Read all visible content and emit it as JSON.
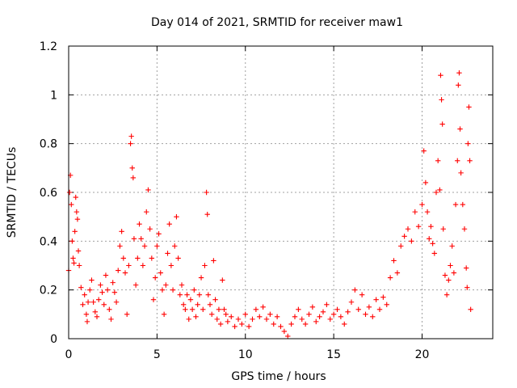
{
  "chart_data": {
    "type": "scatter",
    "title": "Day 014 of 2021, SRMTID for receiver maw1",
    "xlabel": "GPS time / hours",
    "ylabel": "SRMTID / TECUs",
    "xlim": [
      0,
      24.0
    ],
    "ylim": [
      0,
      1.2
    ],
    "xticks": [
      0,
      5,
      10,
      15,
      20
    ],
    "xtick_labels": [
      "0",
      "5",
      "10",
      "15",
      "20"
    ],
    "yticks": [
      0,
      0.2,
      0.4,
      0.6,
      0.8,
      1.0,
      1.2
    ],
    "ytick_labels": [
      "0",
      "0.2",
      "0.4",
      "0.6",
      "0.8",
      "1",
      "1.2"
    ],
    "grid": true,
    "legend": false,
    "marker": "+",
    "color": "#ff0000",
    "series": [
      {
        "name": "SRMTID",
        "points": [
          [
            0.0,
            0.28
          ],
          [
            0.05,
            0.6
          ],
          [
            0.1,
            0.67
          ],
          [
            0.15,
            0.55
          ],
          [
            0.2,
            0.4
          ],
          [
            0.25,
            0.33
          ],
          [
            0.3,
            0.31
          ],
          [
            0.35,
            0.44
          ],
          [
            0.4,
            0.58
          ],
          [
            0.45,
            0.52
          ],
          [
            0.5,
            0.49
          ],
          [
            0.55,
            0.36
          ],
          [
            0.6,
            0.3
          ],
          [
            0.7,
            0.21
          ],
          [
            0.8,
            0.14
          ],
          [
            0.9,
            0.18
          ],
          [
            1.0,
            0.1
          ],
          [
            1.05,
            0.07
          ],
          [
            1.1,
            0.15
          ],
          [
            1.2,
            0.2
          ],
          [
            1.3,
            0.24
          ],
          [
            1.4,
            0.15
          ],
          [
            1.5,
            0.11
          ],
          [
            1.6,
            0.09
          ],
          [
            1.7,
            0.16
          ],
          [
            1.8,
            0.22
          ],
          [
            1.9,
            0.19
          ],
          [
            2.0,
            0.14
          ],
          [
            2.1,
            0.26
          ],
          [
            2.2,
            0.2
          ],
          [
            2.3,
            0.12
          ],
          [
            2.4,
            0.08
          ],
          [
            2.5,
            0.23
          ],
          [
            2.6,
            0.19
          ],
          [
            2.7,
            0.15
          ],
          [
            2.8,
            0.28
          ],
          [
            2.9,
            0.38
          ],
          [
            3.0,
            0.44
          ],
          [
            3.1,
            0.33
          ],
          [
            3.2,
            0.27
          ],
          [
            3.3,
            0.1
          ],
          [
            3.4,
            0.3
          ],
          [
            3.5,
            0.8
          ],
          [
            3.55,
            0.83
          ],
          [
            3.6,
            0.7
          ],
          [
            3.65,
            0.66
          ],
          [
            3.7,
            0.41
          ],
          [
            3.8,
            0.22
          ],
          [
            3.9,
            0.33
          ],
          [
            4.0,
            0.47
          ],
          [
            4.1,
            0.41
          ],
          [
            4.2,
            0.3
          ],
          [
            4.3,
            0.38
          ],
          [
            4.4,
            0.52
          ],
          [
            4.5,
            0.61
          ],
          [
            4.6,
            0.45
          ],
          [
            4.7,
            0.33
          ],
          [
            4.8,
            0.16
          ],
          [
            4.9,
            0.25
          ],
          [
            5.0,
            0.38
          ],
          [
            5.1,
            0.43
          ],
          [
            5.2,
            0.27
          ],
          [
            5.3,
            0.2
          ],
          [
            5.4,
            0.1
          ],
          [
            5.5,
            0.22
          ],
          [
            5.6,
            0.35
          ],
          [
            5.7,
            0.47
          ],
          [
            5.8,
            0.3
          ],
          [
            5.9,
            0.2
          ],
          [
            6.0,
            0.38
          ],
          [
            6.1,
            0.5
          ],
          [
            6.2,
            0.33
          ],
          [
            6.3,
            0.18
          ],
          [
            6.4,
            0.22
          ],
          [
            6.5,
            0.14
          ],
          [
            6.6,
            0.12
          ],
          [
            6.7,
            0.18
          ],
          [
            6.8,
            0.08
          ],
          [
            6.9,
            0.16
          ],
          [
            7.0,
            0.12
          ],
          [
            7.1,
            0.2
          ],
          [
            7.2,
            0.09
          ],
          [
            7.3,
            0.14
          ],
          [
            7.4,
            0.18
          ],
          [
            7.5,
            0.25
          ],
          [
            7.6,
            0.12
          ],
          [
            7.7,
            0.3
          ],
          [
            7.8,
            0.6
          ],
          [
            7.85,
            0.51
          ],
          [
            7.9,
            0.18
          ],
          [
            8.0,
            0.14
          ],
          [
            8.1,
            0.1
          ],
          [
            8.2,
            0.32
          ],
          [
            8.3,
            0.16
          ],
          [
            8.4,
            0.08
          ],
          [
            8.5,
            0.12
          ],
          [
            8.6,
            0.06
          ],
          [
            8.7,
            0.24
          ],
          [
            8.8,
            0.12
          ],
          [
            8.9,
            0.1
          ],
          [
            9.0,
            0.07
          ],
          [
            9.2,
            0.09
          ],
          [
            9.4,
            0.05
          ],
          [
            9.6,
            0.08
          ],
          [
            9.8,
            0.06
          ],
          [
            10.0,
            0.1
          ],
          [
            10.2,
            0.05
          ],
          [
            10.4,
            0.08
          ],
          [
            10.6,
            0.12
          ],
          [
            10.8,
            0.09
          ],
          [
            11.0,
            0.13
          ],
          [
            11.2,
            0.08
          ],
          [
            11.4,
            0.1
          ],
          [
            11.6,
            0.06
          ],
          [
            11.8,
            0.09
          ],
          [
            12.0,
            0.05
          ],
          [
            12.2,
            0.03
          ],
          [
            12.4,
            0.01
          ],
          [
            12.6,
            0.06
          ],
          [
            12.8,
            0.09
          ],
          [
            13.0,
            0.12
          ],
          [
            13.2,
            0.08
          ],
          [
            13.4,
            0.06
          ],
          [
            13.6,
            0.1
          ],
          [
            13.8,
            0.13
          ],
          [
            14.0,
            0.07
          ],
          [
            14.2,
            0.09
          ],
          [
            14.4,
            0.11
          ],
          [
            14.6,
            0.14
          ],
          [
            14.8,
            0.08
          ],
          [
            15.0,
            0.1
          ],
          [
            15.2,
            0.12
          ],
          [
            15.4,
            0.09
          ],
          [
            15.6,
            0.06
          ],
          [
            15.8,
            0.11
          ],
          [
            16.0,
            0.15
          ],
          [
            16.2,
            0.2
          ],
          [
            16.4,
            0.12
          ],
          [
            16.6,
            0.18
          ],
          [
            16.8,
            0.1
          ],
          [
            17.0,
            0.13
          ],
          [
            17.2,
            0.09
          ],
          [
            17.4,
            0.16
          ],
          [
            17.6,
            0.12
          ],
          [
            17.8,
            0.17
          ],
          [
            18.0,
            0.14
          ],
          [
            18.2,
            0.25
          ],
          [
            18.4,
            0.32
          ],
          [
            18.6,
            0.27
          ],
          [
            18.8,
            0.38
          ],
          [
            19.0,
            0.42
          ],
          [
            19.2,
            0.45
          ],
          [
            19.4,
            0.4
          ],
          [
            19.6,
            0.52
          ],
          [
            19.8,
            0.46
          ],
          [
            20.0,
            0.55
          ],
          [
            20.1,
            0.77
          ],
          [
            20.2,
            0.64
          ],
          [
            20.3,
            0.52
          ],
          [
            20.4,
            0.41
          ],
          [
            20.5,
            0.46
          ],
          [
            20.6,
            0.39
          ],
          [
            20.7,
            0.35
          ],
          [
            20.8,
            0.6
          ],
          [
            20.9,
            0.73
          ],
          [
            21.0,
            0.61
          ],
          [
            21.05,
            1.08
          ],
          [
            21.1,
            0.98
          ],
          [
            21.15,
            0.88
          ],
          [
            21.2,
            0.45
          ],
          [
            21.3,
            0.26
          ],
          [
            21.4,
            0.18
          ],
          [
            21.5,
            0.24
          ],
          [
            21.6,
            0.3
          ],
          [
            21.7,
            0.38
          ],
          [
            21.8,
            0.27
          ],
          [
            21.9,
            0.55
          ],
          [
            22.0,
            0.73
          ],
          [
            22.05,
            1.04
          ],
          [
            22.1,
            1.09
          ],
          [
            22.15,
            0.86
          ],
          [
            22.2,
            0.68
          ],
          [
            22.3,
            0.55
          ],
          [
            22.4,
            0.45
          ],
          [
            22.5,
            0.29
          ],
          [
            22.55,
            0.21
          ],
          [
            22.6,
            0.8
          ],
          [
            22.65,
            0.95
          ],
          [
            22.7,
            0.73
          ],
          [
            22.75,
            0.12
          ]
        ]
      }
    ]
  }
}
